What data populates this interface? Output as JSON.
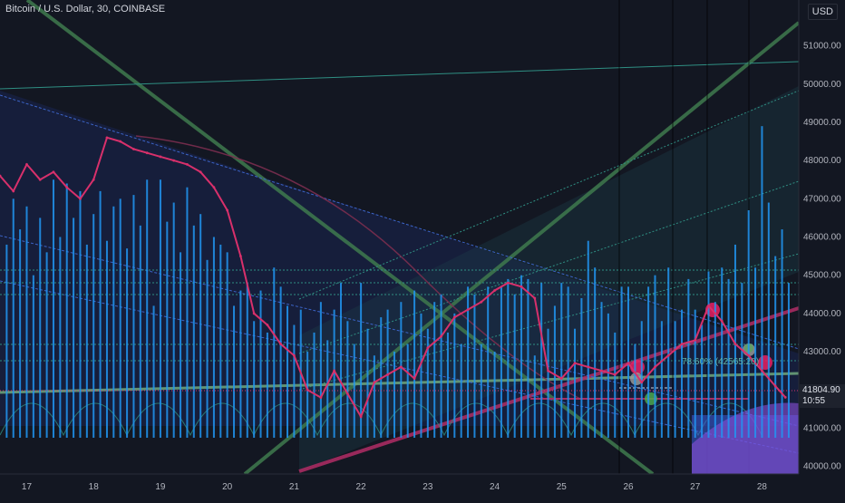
{
  "header": {
    "symbol": "Bitcoin / U.S. Dollar, 30, COINBASE",
    "currency": "USD"
  },
  "last_price": {
    "value": "41804.90",
    "countdown": "10:55"
  },
  "fib_label": "78.60% (42565.20)",
  "colors": {
    "background": "#131722",
    "candle": "#d8306b",
    "histogram": "#2196f3",
    "green_line": "#3f7a4e",
    "teal_line": "#2f8f83",
    "blue_line": "#3c64c8",
    "marker_red": "#e91e63",
    "marker_gray": "#9e9e9e",
    "marker_green": "#4caf50"
  },
  "chart_data": {
    "type": "line",
    "title": "Bitcoin / U.S. Dollar, 30, COINBASE",
    "xlabel": "",
    "ylabel": "",
    "x_ticks": [
      "17",
      "18",
      "19",
      "20",
      "21",
      "22",
      "23",
      "24",
      "25",
      "26",
      "27",
      "28"
    ],
    "y_ticks": [
      40000,
      41000,
      42000,
      43000,
      44000,
      45000,
      46000,
      47000,
      48000,
      49000,
      50000,
      51000
    ],
    "y_tick_labels": [
      "40000.00",
      "41000.00",
      "42000.00",
      "43000.00",
      "44000.00",
      "45000.00",
      "46000.00",
      "47000.00",
      "48000.00",
      "49000.00",
      "50000.00",
      "51000.00"
    ],
    "ylim": [
      39800,
      52200
    ],
    "xlim": [
      16.6,
      28.55
    ],
    "grid": false,
    "series": [
      {
        "values": [
          [
            16.6,
            47600
          ],
          [
            16.8,
            47200
          ],
          [
            17.0,
            47900
          ],
          [
            17.2,
            47500
          ],
          [
            17.4,
            47700
          ],
          [
            17.6,
            47300
          ],
          [
            17.8,
            47000
          ],
          [
            18.0,
            47500
          ],
          [
            18.2,
            48600
          ],
          [
            18.4,
            48500
          ],
          [
            18.6,
            48300
          ],
          [
            18.8,
            48200
          ],
          [
            19.0,
            48100
          ],
          [
            19.2,
            48000
          ],
          [
            19.4,
            47900
          ],
          [
            19.6,
            47700
          ],
          [
            19.8,
            47300
          ],
          [
            20.0,
            46700
          ],
          [
            20.2,
            45500
          ],
          [
            20.4,
            44000
          ],
          [
            20.6,
            43700
          ],
          [
            20.8,
            43200
          ],
          [
            21.0,
            42900
          ],
          [
            21.2,
            42000
          ],
          [
            21.4,
            41800
          ],
          [
            21.6,
            42500
          ],
          [
            21.8,
            41900
          ],
          [
            22.0,
            41300
          ],
          [
            22.2,
            42200
          ],
          [
            22.4,
            42400
          ],
          [
            22.6,
            42600
          ],
          [
            22.8,
            42300
          ],
          [
            23.0,
            43100
          ],
          [
            23.2,
            43400
          ],
          [
            23.4,
            43900
          ],
          [
            23.6,
            44100
          ],
          [
            23.8,
            44300
          ],
          [
            24.0,
            44600
          ],
          [
            24.2,
            44800
          ],
          [
            24.4,
            44700
          ],
          [
            24.6,
            44400
          ],
          [
            24.8,
            42500
          ],
          [
            25.0,
            42300
          ],
          [
            25.2,
            42700
          ],
          [
            25.4,
            42600
          ],
          [
            25.6,
            42500
          ],
          [
            25.8,
            42400
          ],
          [
            26.0,
            42700
          ],
          [
            26.2,
            42200
          ],
          [
            26.4,
            42600
          ],
          [
            26.6,
            42900
          ],
          [
            26.8,
            43200
          ],
          [
            27.0,
            43300
          ],
          [
            27.2,
            44200
          ],
          [
            27.4,
            43800
          ],
          [
            27.6,
            43200
          ],
          [
            27.8,
            42900
          ],
          [
            28.0,
            42500
          ],
          [
            28.2,
            42100
          ],
          [
            28.35,
            41805
          ]
        ]
      }
    ],
    "histogram": [
      [
        16.7,
        45800
      ],
      [
        16.8,
        47000
      ],
      [
        16.9,
        46200
      ],
      [
        17.0,
        46800
      ],
      [
        17.1,
        45000
      ],
      [
        17.2,
        46500
      ],
      [
        17.3,
        45600
      ],
      [
        17.4,
        47500
      ],
      [
        17.5,
        46000
      ],
      [
        17.6,
        47400
      ],
      [
        17.7,
        46500
      ],
      [
        17.8,
        47200
      ],
      [
        17.9,
        45800
      ],
      [
        18.0,
        46600
      ],
      [
        18.1,
        47200
      ],
      [
        18.2,
        45900
      ],
      [
        18.3,
        46800
      ],
      [
        18.4,
        47000
      ],
      [
        18.5,
        45700
      ],
      [
        18.6,
        47100
      ],
      [
        18.7,
        46300
      ],
      [
        18.8,
        47500
      ],
      [
        18.9,
        44200
      ],
      [
        19.0,
        47500
      ],
      [
        19.1,
        46400
      ],
      [
        19.2,
        46900
      ],
      [
        19.3,
        45600
      ],
      [
        19.4,
        47300
      ],
      [
        19.5,
        46300
      ],
      [
        19.6,
        46600
      ],
      [
        19.7,
        45400
      ],
      [
        19.8,
        46000
      ],
      [
        19.9,
        45800
      ],
      [
        20.0,
        45600
      ],
      [
        20.1,
        44200
      ],
      [
        20.2,
        44600
      ],
      [
        20.3,
        44800
      ],
      [
        20.4,
        43800
      ],
      [
        20.5,
        44600
      ],
      [
        20.6,
        43500
      ],
      [
        20.7,
        45200
      ],
      [
        20.8,
        44700
      ],
      [
        20.9,
        44200
      ],
      [
        21.0,
        43700
      ],
      [
        21.1,
        44100
      ],
      [
        21.2,
        43000
      ],
      [
        21.3,
        43500
      ],
      [
        21.4,
        44300
      ],
      [
        21.5,
        43300
      ],
      [
        21.6,
        44100
      ],
      [
        21.7,
        44800
      ],
      [
        21.8,
        43800
      ],
      [
        21.9,
        43200
      ],
      [
        22.0,
        44800
      ],
      [
        22.1,
        43600
      ],
      [
        22.2,
        42900
      ],
      [
        22.3,
        43900
      ],
      [
        22.4,
        44100
      ],
      [
        22.5,
        43000
      ],
      [
        22.6,
        44300
      ],
      [
        22.7,
        43200
      ],
      [
        22.8,
        44600
      ],
      [
        22.9,
        44000
      ],
      [
        23.0,
        43600
      ],
      [
        23.1,
        44300
      ],
      [
        23.2,
        44500
      ],
      [
        23.3,
        43500
      ],
      [
        23.4,
        44000
      ],
      [
        23.5,
        43200
      ],
      [
        23.6,
        44700
      ],
      [
        23.7,
        44500
      ],
      [
        23.8,
        43200
      ],
      [
        23.9,
        44700
      ],
      [
        24.0,
        43000
      ],
      [
        24.1,
        44700
      ],
      [
        24.2,
        44900
      ],
      [
        24.3,
        44500
      ],
      [
        24.4,
        45000
      ],
      [
        24.5,
        44900
      ],
      [
        24.6,
        42900
      ],
      [
        24.7,
        44800
      ],
      [
        24.8,
        43600
      ],
      [
        24.9,
        44200
      ],
      [
        25.0,
        44800
      ],
      [
        25.1,
        44700
      ],
      [
        25.2,
        43600
      ],
      [
        25.3,
        44400
      ],
      [
        25.4,
        45900
      ],
      [
        25.5,
        45200
      ],
      [
        25.6,
        44300
      ],
      [
        25.7,
        44000
      ],
      [
        25.8,
        43500
      ],
      [
        25.9,
        44700
      ],
      [
        26.0,
        44700
      ],
      [
        26.1,
        43200
      ],
      [
        26.2,
        43800
      ],
      [
        26.3,
        44700
      ],
      [
        26.4,
        45000
      ],
      [
        26.5,
        43800
      ],
      [
        26.6,
        45200
      ],
      [
        26.7,
        43800
      ],
      [
        26.8,
        44100
      ],
      [
        26.9,
        44900
      ],
      [
        27.0,
        44100
      ],
      [
        27.1,
        43700
      ],
      [
        27.2,
        45100
      ],
      [
        27.3,
        44300
      ],
      [
        27.4,
        45200
      ],
      [
        27.5,
        44900
      ],
      [
        27.6,
        45800
      ],
      [
        27.7,
        44800
      ],
      [
        27.8,
        46700
      ],
      [
        27.9,
        45200
      ],
      [
        28.0,
        48900
      ],
      [
        28.1,
        46900
      ],
      [
        28.2,
        45500
      ],
      [
        28.3,
        46200
      ],
      [
        28.4,
        44800
      ]
    ]
  }
}
